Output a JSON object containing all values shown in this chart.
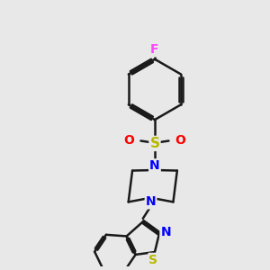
{
  "background_color": "#e8e8e8",
  "bond_color": "#1a1a1a",
  "atom_colors": {
    "F": "#ff44ff",
    "S_sulfonyl": "#b8b800",
    "O": "#ff0000",
    "N": "#0000ff",
    "S_thia": "#b8b800",
    "C": "#1a1a1a"
  },
  "figsize": [
    3.0,
    3.0
  ],
  "dpi": 100
}
